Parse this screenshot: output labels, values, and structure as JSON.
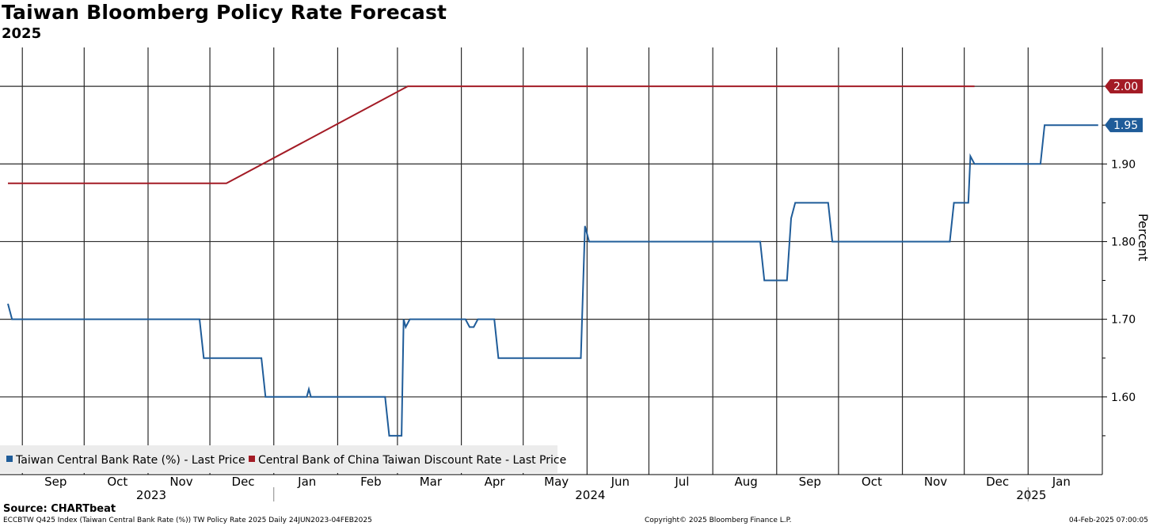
{
  "header": {
    "title": "Taiwan Bloomberg Policy Rate Forecast",
    "subtitle": "2025"
  },
  "chart_data": {
    "type": "line",
    "title": "Taiwan Bloomberg Policy Rate Forecast",
    "subtitle": "2025",
    "ylabel": "Percent",
    "xlabel": "",
    "xlim": [
      "2023-08-25",
      "2025-02-06"
    ],
    "ylim": [
      1.5,
      2.05
    ],
    "yticks": [
      1.6,
      1.7,
      1.8,
      1.9,
      2.0
    ],
    "ytick_labels": [
      "1.60",
      "1.70",
      "1.80",
      "1.90",
      "2.00"
    ],
    "grid": true,
    "legend_position": "bottom-left",
    "month_ticks": [
      {
        "date": "2023-09-01",
        "label": "Sep"
      },
      {
        "date": "2023-10-01",
        "label": "Oct"
      },
      {
        "date": "2023-11-01",
        "label": "Nov"
      },
      {
        "date": "2023-12-01",
        "label": "Dec"
      },
      {
        "date": "2024-01-01",
        "label": "Jan"
      },
      {
        "date": "2024-02-01",
        "label": "Feb"
      },
      {
        "date": "2024-03-01",
        "label": "Mar"
      },
      {
        "date": "2024-04-01",
        "label": "Apr"
      },
      {
        "date": "2024-05-01",
        "label": "May"
      },
      {
        "date": "2024-06-01",
        "label": "Jun"
      },
      {
        "date": "2024-07-01",
        "label": "Jul"
      },
      {
        "date": "2024-08-01",
        "label": "Aug"
      },
      {
        "date": "2024-09-01",
        "label": "Sep"
      },
      {
        "date": "2024-10-01",
        "label": "Oct"
      },
      {
        "date": "2024-11-01",
        "label": "Nov"
      },
      {
        "date": "2024-12-01",
        "label": "Dec"
      },
      {
        "date": "2025-01-01",
        "label": "Jan"
      }
    ],
    "year_ticks": [
      {
        "date": "2023-11-01",
        "label": "2023"
      },
      {
        "date": "2024-06-01",
        "label": "2024"
      },
      {
        "date": "2025-01-01",
        "label": "2025"
      }
    ],
    "year_boundaries": [
      "2024-01-01",
      "2025-01-01"
    ],
    "series": [
      {
        "name": "Taiwan Central Bank Rate (%) - Last Price",
        "color": "#1f5c99",
        "last_value_label": "1.95",
        "points": [
          [
            "2023-08-25",
            1.72
          ],
          [
            "2023-08-27",
            1.7
          ],
          [
            "2023-11-26",
            1.7
          ],
          [
            "2023-11-28",
            1.65
          ],
          [
            "2023-12-26",
            1.65
          ],
          [
            "2023-12-28",
            1.6
          ],
          [
            "2024-01-17",
            1.6
          ],
          [
            "2024-01-18",
            1.61
          ],
          [
            "2024-01-19",
            1.6
          ],
          [
            "2024-02-24",
            1.6
          ],
          [
            "2024-02-26",
            1.55
          ],
          [
            "2024-03-03",
            1.55
          ],
          [
            "2024-03-04",
            1.7
          ],
          [
            "2024-03-05",
            1.69
          ],
          [
            "2024-03-07",
            1.7
          ],
          [
            "2024-04-03",
            1.7
          ],
          [
            "2024-04-05",
            1.69
          ],
          [
            "2024-04-07",
            1.69
          ],
          [
            "2024-04-09",
            1.7
          ],
          [
            "2024-04-17",
            1.7
          ],
          [
            "2024-04-19",
            1.65
          ],
          [
            "2024-05-29",
            1.65
          ],
          [
            "2024-05-31",
            1.82
          ],
          [
            "2024-06-02",
            1.8
          ],
          [
            "2024-08-24",
            1.8
          ],
          [
            "2024-08-26",
            1.75
          ],
          [
            "2024-09-06",
            1.75
          ],
          [
            "2024-09-08",
            1.83
          ],
          [
            "2024-09-10",
            1.85
          ],
          [
            "2024-09-26",
            1.85
          ],
          [
            "2024-09-28",
            1.8
          ],
          [
            "2024-11-24",
            1.8
          ],
          [
            "2024-11-26",
            1.85
          ],
          [
            "2024-12-03",
            1.85
          ],
          [
            "2024-12-04",
            1.91
          ],
          [
            "2024-12-06",
            1.9
          ],
          [
            "2025-01-07",
            1.9
          ],
          [
            "2025-01-09",
            1.95
          ],
          [
            "2025-02-04",
            1.95
          ]
        ]
      },
      {
        "name": "Central Bank of China Taiwan Discount Rate - Last Price",
        "color": "#a31b25",
        "last_value_label": "2.00",
        "points": [
          [
            "2023-08-25",
            1.875
          ],
          [
            "2023-12-09",
            1.875
          ],
          [
            "2024-03-06",
            2.0
          ],
          [
            "2024-12-06",
            2.0
          ]
        ]
      }
    ]
  },
  "footer": {
    "source": "Source: CHARTbeat",
    "left_note": "ECCBTW Q425 Index (Taiwan Central Bank Rate (%)) TW Policy Rate 2025  Daily 24JUN2023-04FEB2025",
    "copyright": "Copyright© 2025 Bloomberg Finance L.P.",
    "timestamp": "04-Feb-2025 07:00:05"
  }
}
